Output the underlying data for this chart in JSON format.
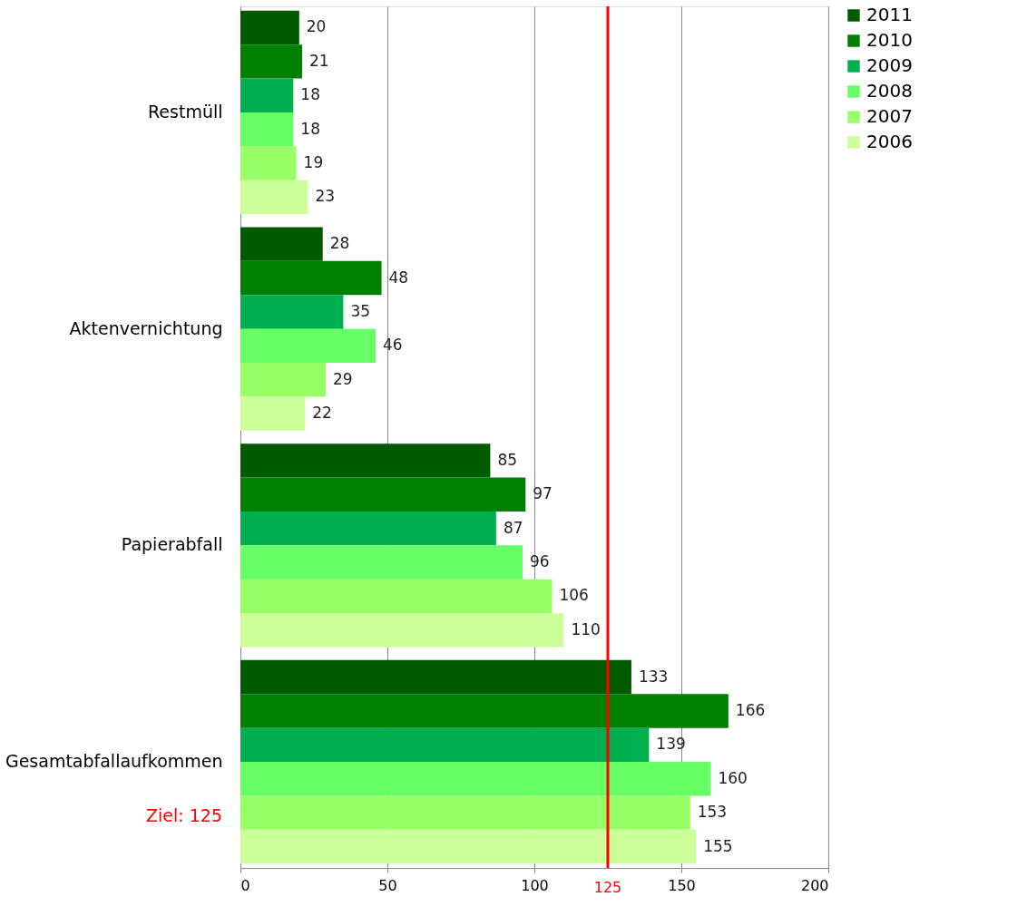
{
  "chart_data": {
    "type": "bar",
    "orientation": "horizontal",
    "categories": [
      "Restmüll",
      "Aktenvernichtung",
      "Papierabfall",
      "Gesamtabfallaufkommen"
    ],
    "series": [
      {
        "name": "2011",
        "color": "#005a00",
        "values": [
          20,
          28,
          85,
          133
        ]
      },
      {
        "name": "2010",
        "color": "#008000",
        "values": [
          21,
          48,
          97,
          166
        ]
      },
      {
        "name": "2009",
        "color": "#00b050",
        "values": [
          18,
          35,
          87,
          139
        ]
      },
      {
        "name": "2008",
        "color": "#66ff66",
        "values": [
          18,
          46,
          96,
          160
        ]
      },
      {
        "name": "2007",
        "color": "#99ff66",
        "values": [
          19,
          29,
          106,
          153
        ]
      },
      {
        "name": "2006",
        "color": "#ccff99",
        "values": [
          23,
          22,
          110,
          155
        ]
      }
    ],
    "xlim": [
      0,
      200
    ],
    "xticks": [
      0,
      50,
      100,
      150,
      200
    ],
    "ref_lines": [
      {
        "axis": "x",
        "value": 125,
        "label": "125",
        "color": "#ff0000"
      }
    ],
    "annotations": [
      "Ziel: 125"
    ],
    "data_labels": true,
    "grid": "x",
    "legend": "top right"
  }
}
